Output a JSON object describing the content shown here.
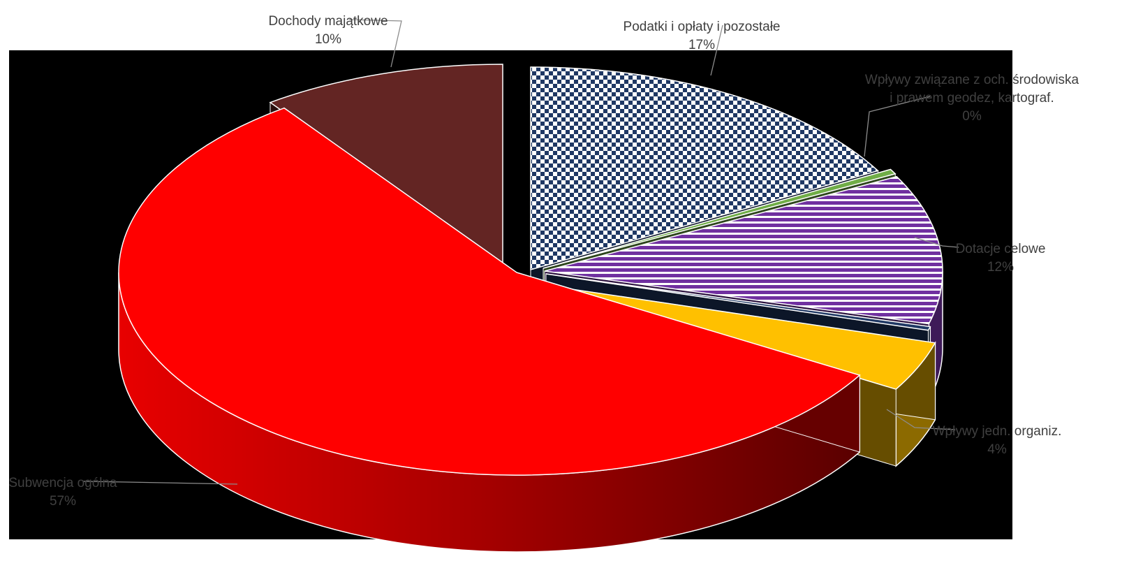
{
  "chart_data": {
    "type": "pie",
    "variant": "3d-exploded",
    "title": "",
    "slices": [
      {
        "label": "Podatki i opłaty i pozostałe",
        "value": 17,
        "value_label": "17%",
        "color": "#1f3864",
        "pattern": "checker"
      },
      {
        "label": "Wpływy związane z och. środowiska i prawem geodez, kartograf.",
        "label_lines": [
          "Wpływy związane z och. środowiska",
          "i prawem geodez, kartograf."
        ],
        "value": 0.4,
        "value_label": "0%",
        "color": "#70ad47",
        "pattern": "none"
      },
      {
        "label": "Dotacje celowe",
        "value": 12,
        "value_label": "12%",
        "color": "#7030a0",
        "pattern": "hstripes"
      },
      {
        "label": "",
        "value": 0.3,
        "value_label": "",
        "color": "#1f3864",
        "pattern": "none"
      },
      {
        "label": "Wpływy jedn. organiz.",
        "value": 4,
        "value_label": "4%",
        "color": "#ffc000",
        "pattern": "none"
      },
      {
        "label": "Subwencja ogólna",
        "value": 57,
        "value_label": "57%",
        "color": "#ff0000",
        "pattern": "none"
      },
      {
        "label": "Dochody majątkowe",
        "value": 10,
        "value_label": "10%",
        "color": "#632523",
        "pattern": "none"
      }
    ],
    "legend": "none",
    "background_colors": {
      "plot_area": "#000000",
      "page": "#ffffff"
    }
  }
}
